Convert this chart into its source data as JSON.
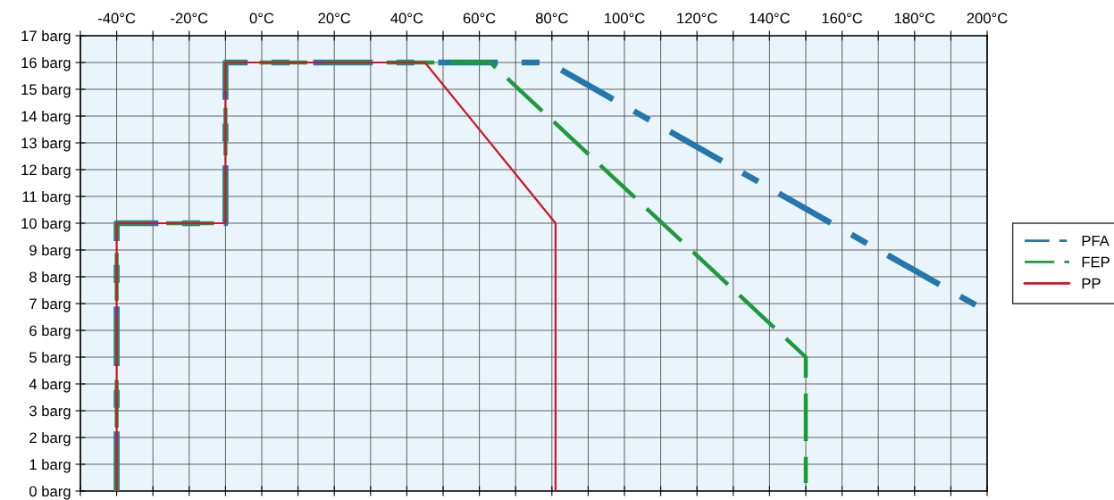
{
  "chart_data": {
    "type": "line",
    "series": [
      {
        "name": "PFA",
        "color": "#2477ad",
        "line_style": "dashdot",
        "x": [
          -40,
          -40,
          -10,
          -10,
          79,
          200
        ],
        "values": [
          0,
          10,
          10,
          16,
          16,
          6.7
        ]
      },
      {
        "name": "FEP",
        "color": "#1d9a3c",
        "line_style": "dashed",
        "x": [
          -40,
          -40,
          -10,
          -10,
          63,
          150,
          150
        ],
        "values": [
          0,
          10,
          10,
          16,
          16,
          5,
          0.3
        ]
      },
      {
        "name": "PP",
        "color": "#d0142c",
        "line_style": "solid",
        "x": [
          -40,
          -40,
          -10,
          -10,
          45,
          81,
          81
        ],
        "values": [
          0,
          10,
          10,
          16,
          16,
          10,
          0
        ]
      }
    ],
    "xlim": [
      -50,
      200
    ],
    "xticks": [
      {
        "value": -50,
        "label": null
      },
      {
        "value": -40,
        "label": "-40°C"
      },
      {
        "value": -30,
        "label": null
      },
      {
        "value": -20,
        "label": "-20°C"
      },
      {
        "value": -10,
        "label": null
      },
      {
        "value": 0,
        "label": "0°C"
      },
      {
        "value": 10,
        "label": null
      },
      {
        "value": 20,
        "label": "20°C"
      },
      {
        "value": 30,
        "label": null
      },
      {
        "value": 40,
        "label": "40°C"
      },
      {
        "value": 50,
        "label": null
      },
      {
        "value": 60,
        "label": "60°C"
      },
      {
        "value": 70,
        "label": null
      },
      {
        "value": 80,
        "label": "80°C"
      },
      {
        "value": 90,
        "label": null
      },
      {
        "value": 100,
        "label": "100°C"
      },
      {
        "value": 110,
        "label": null
      },
      {
        "value": 120,
        "label": "120°C"
      },
      {
        "value": 130,
        "label": null
      },
      {
        "value": 140,
        "label": "140°C"
      },
      {
        "value": 150,
        "label": null
      },
      {
        "value": 160,
        "label": "160°C"
      },
      {
        "value": 170,
        "label": null
      },
      {
        "value": 180,
        "label": "180°C"
      },
      {
        "value": 190,
        "label": null
      },
      {
        "value": 200,
        "label": "200°C"
      }
    ],
    "ylim": [
      0,
      17
    ],
    "yticks": [
      {
        "value": 0,
        "label": "0 barg"
      },
      {
        "value": 1,
        "label": "1 barg"
      },
      {
        "value": 2,
        "label": "2 barg"
      },
      {
        "value": 3,
        "label": "3 barg"
      },
      {
        "value": 4,
        "label": "4 barg"
      },
      {
        "value": 5,
        "label": "5 barg"
      },
      {
        "value": 6,
        "label": "6 barg"
      },
      {
        "value": 7,
        "label": "7 barg"
      },
      {
        "value": 8,
        "label": "8 barg"
      },
      {
        "value": 9,
        "label": "9 barg"
      },
      {
        "value": 10,
        "label": "10 barg"
      },
      {
        "value": 11,
        "label": "11 barg"
      },
      {
        "value": 12,
        "label": "12 barg"
      },
      {
        "value": 13,
        "label": "13 barg"
      },
      {
        "value": 14,
        "label": "14 barg"
      },
      {
        "value": 15,
        "label": "15 barg"
      },
      {
        "value": 16,
        "label": "16 barg"
      },
      {
        "value": 17,
        "label": "17 barg"
      }
    ],
    "grid": true,
    "legend": "right"
  }
}
